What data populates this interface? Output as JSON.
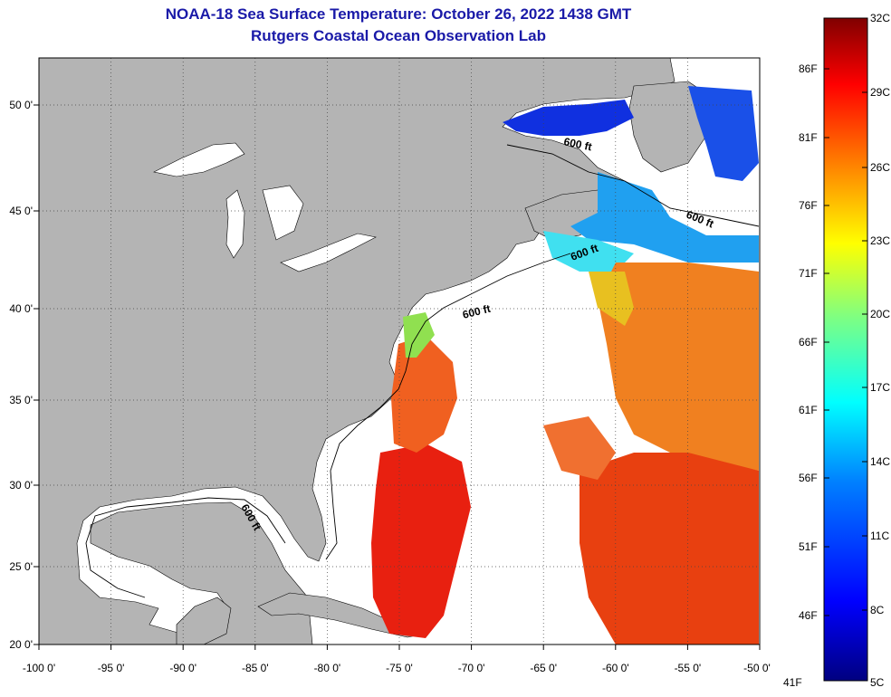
{
  "header": {
    "title": "NOAA-18 Sea Surface Temperature:  October 26, 2022 1438 GMT",
    "subtitle": "Rutgers Coastal Ocean Observation Lab"
  },
  "map": {
    "longitude_labels": [
      "-100 0'",
      "-95 0'",
      "-90 0'",
      "-85 0'",
      "-80 0'",
      "-75 0'",
      "-70 0'",
      "-65 0'",
      "-60 0'",
      "-55 0'",
      "-50 0'"
    ],
    "latitude_labels": [
      "50 0'",
      "45 0'",
      "40 0'",
      "35 0'",
      "30 0'",
      "25 0'",
      "20 0'"
    ],
    "contour_label": "600 ft",
    "land_color": "#b4b4b4",
    "no_data_color": "#ffffff"
  },
  "colorbar": {
    "celsius_labels": [
      "32C",
      "29C",
      "26C",
      "23C",
      "20C",
      "17C",
      "14C",
      "11C",
      "8C",
      "5C"
    ],
    "fahrenheit_labels": [
      "86F",
      "81F",
      "76F",
      "71F",
      "66F",
      "61F",
      "56F",
      "51F",
      "46F",
      "41F"
    ],
    "colors": [
      "#000080",
      "#0000ff",
      "#0080ff",
      "#00ffff",
      "#80ff80",
      "#ffff00",
      "#ff8000",
      "#ff0000",
      "#800000"
    ]
  }
}
